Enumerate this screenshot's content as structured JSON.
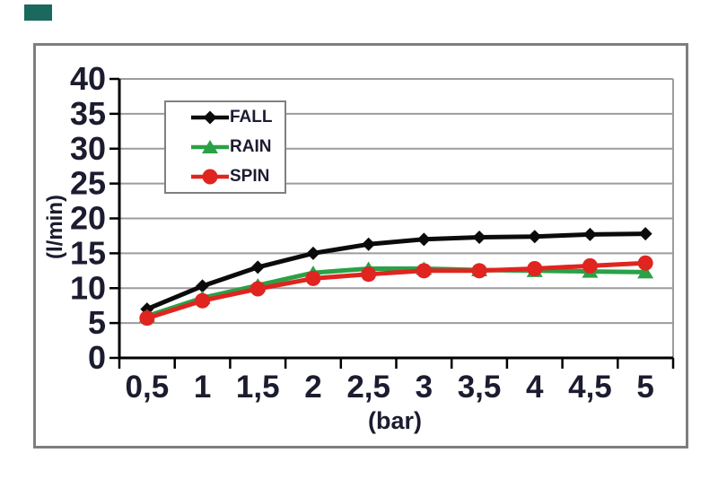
{
  "page": {
    "background": "#ffffff"
  },
  "decoration": {
    "corner_tag_color": "#1a685e"
  },
  "text_color": "#1c1c30",
  "frame": {
    "border_color": "#7e7e7e",
    "gridline_color": "#9c9c9c",
    "axis_color": "#000000"
  },
  "chart_data": {
    "type": "line",
    "title": "",
    "xlabel": "(bar)",
    "ylabel": "(l/min)",
    "x": [
      0.5,
      1,
      1.5,
      2,
      2.5,
      3,
      3.5,
      4,
      4.5,
      5
    ],
    "x_tick_labels": [
      "0,5",
      "1",
      "1,5",
      "2",
      "2,5",
      "3",
      "3,5",
      "4",
      "4,5",
      "5"
    ],
    "y_ticks": [
      0,
      5,
      10,
      15,
      20,
      25,
      30,
      35,
      40
    ],
    "y_tick_labels": [
      "0",
      "5",
      "10",
      "15",
      "20",
      "25",
      "30",
      "35",
      "40"
    ],
    "ylim": [
      0,
      40
    ],
    "grid": true,
    "legend_position": "upper-left-inside",
    "series": [
      {
        "name": "FALL",
        "color": "#0b0b0b",
        "marker": "diamond",
        "values": [
          7.0,
          10.3,
          13.0,
          15.0,
          16.3,
          17.0,
          17.3,
          17.4,
          17.7,
          17.8
        ]
      },
      {
        "name": "RAIN",
        "color": "#2aa146",
        "marker": "triangle",
        "values": [
          6.0,
          8.6,
          10.4,
          12.2,
          12.8,
          12.8,
          12.6,
          12.5,
          12.4,
          12.3
        ]
      },
      {
        "name": "SPIN",
        "color": "#e02420",
        "marker": "circle",
        "values": [
          5.7,
          8.2,
          9.9,
          11.4,
          12.0,
          12.5,
          12.5,
          12.8,
          13.2,
          13.6
        ]
      }
    ]
  }
}
